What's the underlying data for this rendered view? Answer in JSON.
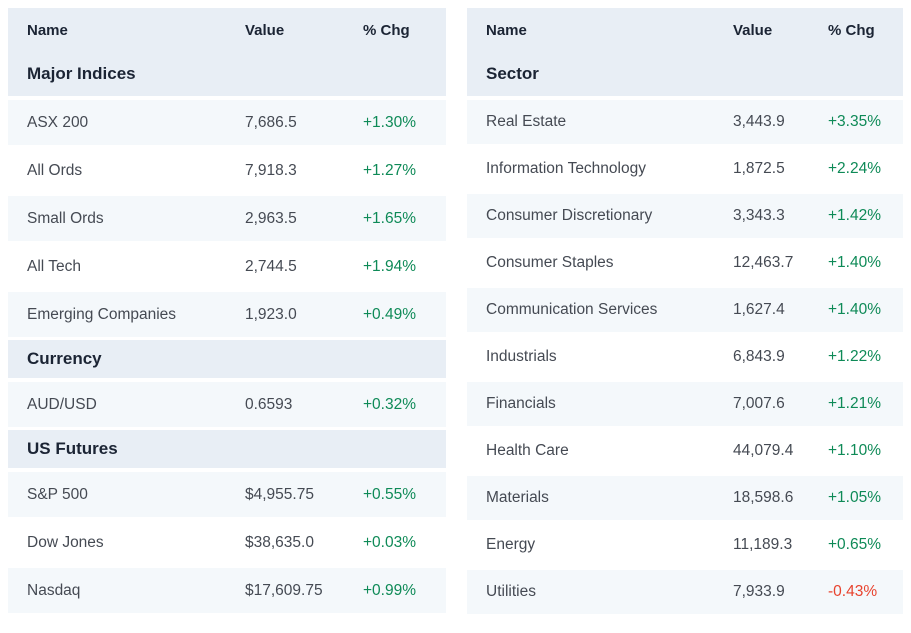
{
  "colors": {
    "header_background": "#e8eef5",
    "stripe_background": "#f4f8fb",
    "heading_text": "#1b2434",
    "body_text": "#454a53",
    "positive_change": "#0e8a57",
    "negative_change": "#e8432e"
  },
  "tables": [
    {
      "name": "indices-table",
      "columns": [
        "Name",
        "Value",
        "% Chg"
      ],
      "sections": [
        {
          "title": "Major Indices",
          "rows": [
            {
              "name": "ASX 200",
              "value": "7,686.5",
              "change": "+1.30%"
            },
            {
              "name": "All Ords",
              "value": "7,918.3",
              "change": "+1.27%"
            },
            {
              "name": "Small Ords",
              "value": "2,963.5",
              "change": "+1.65%"
            },
            {
              "name": "All Tech",
              "value": "2,744.5",
              "change": "+1.94%"
            },
            {
              "name": "Emerging Companies",
              "value": "1,923.0",
              "change": "+0.49%"
            }
          ]
        },
        {
          "title": "Currency",
          "rows": [
            {
              "name": "AUD/USD",
              "value": "0.6593",
              "change": "+0.32%"
            }
          ]
        },
        {
          "title": "US Futures",
          "rows": [
            {
              "name": "S&P 500",
              "value": "$4,955.75",
              "change": "+0.55%"
            },
            {
              "name": "Dow Jones",
              "value": "$38,635.0",
              "change": "+0.03%"
            },
            {
              "name": "Nasdaq",
              "value": "$17,609.75",
              "change": "+0.99%"
            }
          ]
        }
      ]
    },
    {
      "name": "sectors-table",
      "columns": [
        "Name",
        "Value",
        "% Chg"
      ],
      "sections": [
        {
          "title": "Sector",
          "rows": [
            {
              "name": "Real Estate",
              "value": "3,443.9",
              "change": "+3.35%"
            },
            {
              "name": "Information Technology",
              "value": "1,872.5",
              "change": "+2.24%"
            },
            {
              "name": "Consumer Discretionary",
              "value": "3,343.3",
              "change": "+1.42%"
            },
            {
              "name": "Consumer Staples",
              "value": "12,463.7",
              "change": "+1.40%"
            },
            {
              "name": "Communication Services",
              "value": "1,627.4",
              "change": "+1.40%"
            },
            {
              "name": "Industrials",
              "value": "6,843.9",
              "change": "+1.22%"
            },
            {
              "name": "Financials",
              "value": "7,007.6",
              "change": "+1.21%"
            },
            {
              "name": "Health Care",
              "value": "44,079.4",
              "change": "+1.10%"
            },
            {
              "name": "Materials",
              "value": "18,598.6",
              "change": "+1.05%"
            },
            {
              "name": "Energy",
              "value": "11,189.3",
              "change": "+0.65%"
            },
            {
              "name": "Utilities",
              "value": "7,933.9",
              "change": "-0.43%"
            }
          ]
        }
      ]
    }
  ]
}
